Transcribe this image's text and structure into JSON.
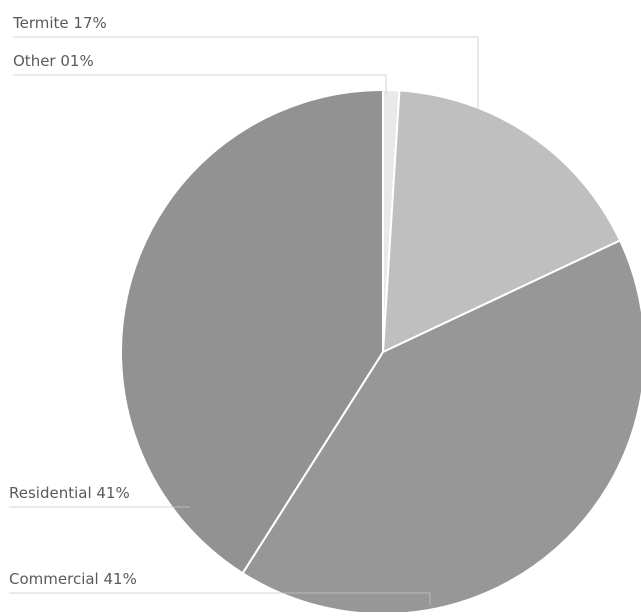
{
  "chart_data": {
    "type": "pie",
    "slices": [
      {
        "label": "Other",
        "value": 1,
        "value_label": "01%",
        "color": "#e9e9e9"
      },
      {
        "label": "Termite",
        "value": 17,
        "value_label": "17%",
        "color": "#bfbfbf"
      },
      {
        "label": "Commercial",
        "value": 41,
        "value_label": "41%",
        "color": "#979797"
      },
      {
        "label": "Residential",
        "value": 41,
        "value_label": "41%",
        "color": "#929292"
      }
    ],
    "legend": "none",
    "label_style": "external labels with leader lines"
  }
}
